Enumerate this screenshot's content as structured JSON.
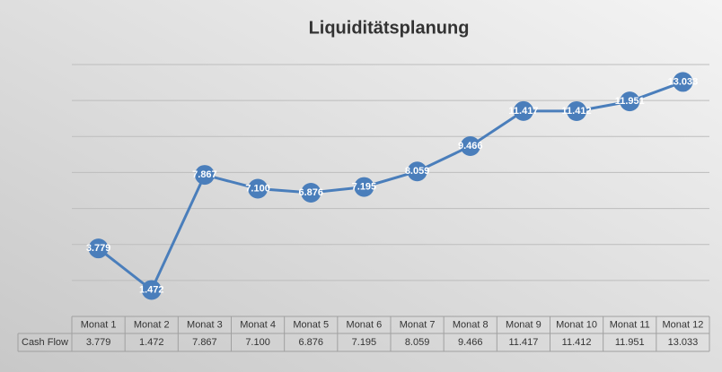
{
  "chart_data": {
    "type": "line",
    "title": "Liquiditätsplanung",
    "categories": [
      "Monat 1",
      "Monat 2",
      "Monat 3",
      "Monat 4",
      "Monat 5",
      "Monat 6",
      "Monat 7",
      "Monat 8",
      "Monat 9",
      "Monat 10",
      "Monat 11",
      "Monat 12"
    ],
    "series": [
      {
        "name": "Cash Flow",
        "color": "#4a7ebb",
        "values": [
          3779,
          1472,
          7867,
          7100,
          6876,
          7195,
          8059,
          9466,
          11417,
          11412,
          11951,
          13033
        ],
        "value_labels": [
          "3.779",
          "1.472",
          "7.867",
          "7.100",
          "6.876",
          "7.195",
          "8.059",
          "9.466",
          "11.417",
          "11.412",
          "11.951",
          "13.033"
        ]
      }
    ],
    "ylim": [
      0,
      14000
    ],
    "yticks": [
      0,
      2000,
      4000,
      6000,
      8000,
      10000,
      12000,
      14000
    ],
    "grid": true
  }
}
